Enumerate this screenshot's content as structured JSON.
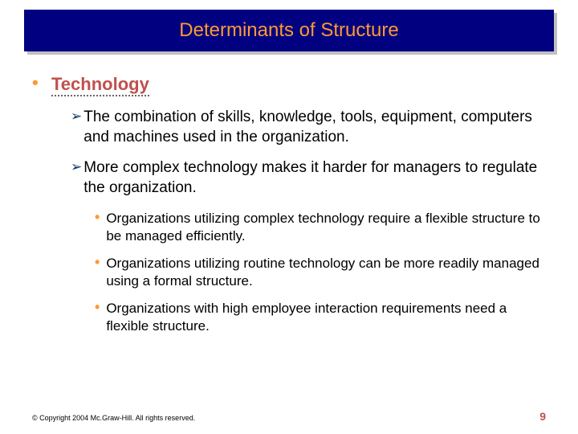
{
  "title": "Determinants of Structure",
  "main_heading": "Technology",
  "sub_items": [
    "The combination of skills, knowledge, tools, equipment, computers and machines used in the organization.",
    "More complex technology makes it harder for managers to regulate the organization."
  ],
  "subsub_items": [
    "Organizations utilizing complex technology require a flexible structure to be managed efficiently.",
    "Organizations utilizing routine technology can be more readily managed using a formal structure.",
    "Organizations with high employee interaction requirements need a flexible structure."
  ],
  "copyright": "© Copyright 2004 Mc.Graw-Hill. All rights reserved.",
  "page_number": "9",
  "colors": {
    "title_bg": "#000080",
    "title_text": "#ff9933",
    "bullet": "#ff9933",
    "heading": "#c0504d",
    "arrow": "#003366",
    "body": "#000000"
  }
}
